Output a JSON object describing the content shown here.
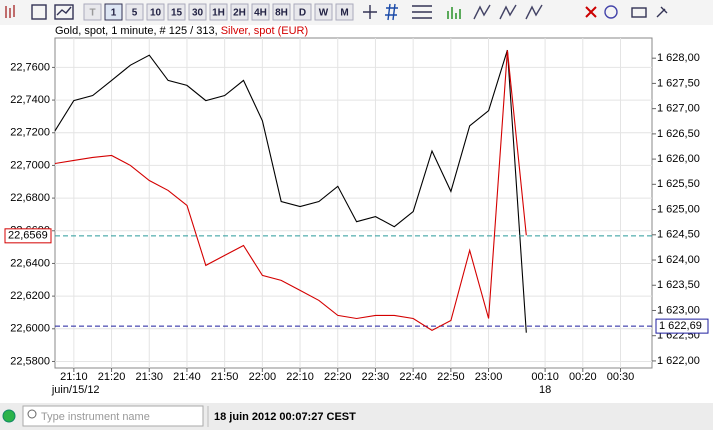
{
  "toolbar": {
    "buttons": [
      "T",
      "1",
      "5",
      "10",
      "15",
      "30",
      "1H",
      "2H",
      "4H",
      "8H",
      "D",
      "W",
      "M"
    ]
  },
  "chart_data": {
    "type": "line",
    "subtitle": ", 1 minute, # 125 / 313, ",
    "categories": [
      null,
      "21:10",
      null,
      "21:20",
      null,
      "21:30",
      null,
      "21:40",
      null,
      "21:50",
      null,
      "22:00",
      null,
      "22:10",
      null,
      "22:20",
      null,
      "22:30",
      null,
      "22:40",
      null,
      "22:50",
      null,
      "23:00",
      null,
      null,
      "00:10",
      null,
      "00:20",
      null,
      "00:30",
      null
    ],
    "date_labels": [
      {
        "category": 1,
        "label": "juin/15/12"
      },
      {
        "category": 26,
        "label": "18"
      }
    ],
    "series": [
      {
        "name": "Gold, spot",
        "color": "#000000",
        "axis": "y2",
        "values": [
          1626.56,
          1627.16,
          1627.26,
          1627.56,
          1627.86,
          1628.06,
          1627.56,
          1627.46,
          1627.16,
          1627.26,
          1627.56,
          1626.76,
          1625.16,
          1625.06,
          1625.16,
          1625.46,
          1624.76,
          1624.86,
          1624.66,
          1624.96,
          1626.16,
          1625.36,
          1626.66,
          1626.96,
          1628.16,
          1622.56,
          null,
          null,
          null,
          null,
          null,
          null
        ],
        "current": {
          "value": 1622.69,
          "label": "1 622,69"
        },
        "current_color": "#1f1f9f"
      },
      {
        "name": "Silver, spot (EUR)",
        "color": "#d40000",
        "axis": "y",
        "values": [
          22.7012,
          22.7031,
          22.7049,
          22.7061,
          22.7,
          22.6908,
          22.6847,
          22.6755,
          22.6388,
          22.6449,
          22.651,
          22.6327,
          22.6296,
          22.6235,
          22.6174,
          22.6082,
          22.6063,
          22.6082,
          22.6082,
          22.6063,
          22.599,
          22.6051,
          22.648,
          22.6063,
          22.7705,
          22.6572,
          null,
          null,
          null,
          null,
          null,
          null
        ],
        "current": {
          "value": 22.6569,
          "label": "22,6569"
        },
        "current_color": "#2a9a9a"
      }
    ],
    "ylim": [
      22.576,
      22.778
    ],
    "yticks": [
      {
        "value": 22.58,
        "label": "22,5800"
      },
      {
        "value": 22.6,
        "label": "22,6000"
      },
      {
        "value": 22.62,
        "label": "22,6200"
      },
      {
        "value": 22.64,
        "label": "22,6400"
      },
      {
        "value": 22.66,
        "label": "22,6600"
      },
      {
        "value": 22.68,
        "label": "22,6800"
      },
      {
        "value": 22.7,
        "label": "22,7000"
      },
      {
        "value": 22.72,
        "label": "22,7200"
      },
      {
        "value": 22.74,
        "label": "22,7400"
      },
      {
        "value": 22.76,
        "label": "22,7600"
      }
    ],
    "y2lim": [
      1621.86,
      1628.4
    ],
    "y2ticks": [
      {
        "value": 1622,
        "label": "1 622,00"
      },
      {
        "value": 1622.5,
        "label": "1 622,50"
      },
      {
        "value": 1623,
        "label": "1 623,00"
      },
      {
        "value": 1623.5,
        "label": "1 623,50"
      },
      {
        "value": 1624,
        "label": "1 624,00"
      },
      {
        "value": 1624.5,
        "label": "1 624,50"
      },
      {
        "value": 1625,
        "label": "1 625,00"
      },
      {
        "value": 1625.5,
        "label": "1 625,50"
      },
      {
        "value": 1626,
        "label": "1 626,00"
      },
      {
        "value": 1626.5,
        "label": "1 626,50"
      },
      {
        "value": 1627,
        "label": "1 627,00"
      },
      {
        "value": 1627.5,
        "label": "1 627,50"
      },
      {
        "value": 1628,
        "label": "1 628,00"
      }
    ],
    "grid": true
  },
  "status_bar": {
    "search_placeholder": "Type instrument name",
    "datetime": "18 juin 2012 00:07:27 CEST"
  }
}
